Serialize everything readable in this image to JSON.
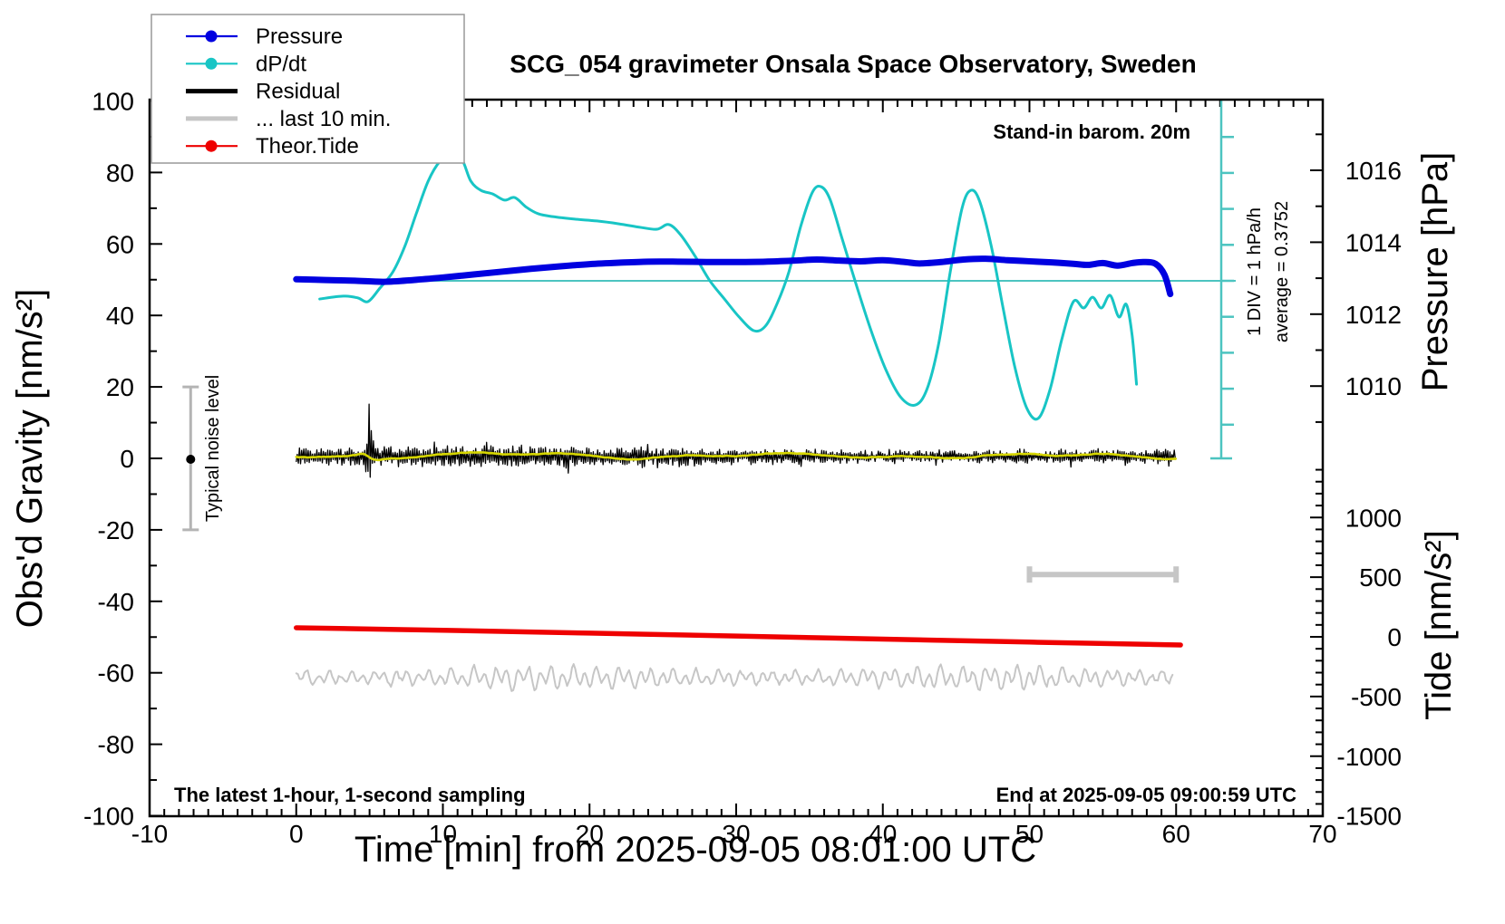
{
  "title": "SCG_054 gravimeter Onsala Space Observatory, Sweden",
  "annotations": {
    "barometer": "Stand-in barom. 20m",
    "div_scale": "1 DIV = 1 hPa/h",
    "average": "average = 0.3752",
    "noise_label": "Typical noise level",
    "sampling": "The latest 1-hour, 1-second sampling",
    "end_time": "End at 2025-09-05 09:00:59 UTC"
  },
  "axes": {
    "x": {
      "label": "Time [min] from 2025-09-05 08:01:00 UTC",
      "range": [
        -10,
        70
      ],
      "major_ticks": [
        -10,
        0,
        10,
        20,
        30,
        40,
        50,
        60,
        70
      ],
      "minor_step": 1
    },
    "y_left": {
      "label": "Obs'd Gravity [nm/s²]",
      "range": [
        -100,
        100
      ],
      "major_ticks": [
        100,
        80,
        60,
        40,
        20,
        0,
        -20,
        -40,
        -60,
        -80,
        -100
      ],
      "minor_step": 10
    },
    "y_right_pressure": {
      "label": "Pressure [hPa]",
      "major_ticks": [
        1016,
        1014,
        1012,
        1010
      ],
      "minor_ticks": [
        1017,
        1015,
        1013,
        1011,
        1009
      ]
    },
    "y_right_tide": {
      "label": "Tide [nm/s²]",
      "major_ticks": [
        1000,
        500,
        0,
        -500,
        -1000,
        -1500
      ],
      "minor_step": 100,
      "minor_range": [
        -1400,
        1400
      ]
    }
  },
  "legend": {
    "items": [
      {
        "label": "Pressure",
        "color": "#0000e0",
        "style": "line-dot"
      },
      {
        "label": "dP/dt",
        "color": "#18c5c5",
        "style": "line-dot"
      },
      {
        "label": "Residual",
        "color": "#000000",
        "style": "thick"
      },
      {
        "label": "... last 10 min.",
        "color": "#c6c6c6",
        "style": "thick"
      },
      {
        "label": "Theor.Tide",
        "color": "#ee0000",
        "style": "line-dot"
      }
    ]
  },
  "colors": {
    "pressure": "#0000e0",
    "dpdt": "#18c5c5",
    "dpdt_ruler": "#4cc4c0",
    "residual": "#000000",
    "residual_smooth": "#d6d600",
    "last10": "#c6c6c6",
    "tide": "#ee0000",
    "noise_bar": "#b4b4b4"
  },
  "chart_data": {
    "type": "line",
    "title": "SCG_054 gravimeter Onsala Space Observatory, Sweden",
    "xlabel": "Time [min] from 2025-09-05 08:01:00 UTC",
    "x_range_min": [
      -10,
      70
    ],
    "left_axis": {
      "label": "Obs'd Gravity [nm/s²]",
      "range": [
        -100,
        100
      ]
    },
    "pressure_axis": {
      "label": "Pressure [hPa]",
      "labeled_range": [
        1009,
        1017
      ]
    },
    "tide_axis": {
      "label": "Tide [nm/s²]",
      "range": [
        -1500,
        1000
      ]
    },
    "dpdt_scale_note": "1 DIV = 1 hPa/h, average = 0.3752 hPa/h",
    "series": [
      {
        "name": "Pressure",
        "unit": "hPa",
        "axis": "pressure",
        "points": [
          [
            0,
            1012.97
          ],
          [
            2,
            1012.95
          ],
          [
            4,
            1012.93
          ],
          [
            6,
            1012.9
          ],
          [
            8,
            1012.95
          ],
          [
            10,
            1013.02
          ],
          [
            12,
            1013.1
          ],
          [
            14,
            1013.18
          ],
          [
            16,
            1013.26
          ],
          [
            18,
            1013.33
          ],
          [
            20,
            1013.39
          ],
          [
            22,
            1013.43
          ],
          [
            24,
            1013.46
          ],
          [
            26,
            1013.46
          ],
          [
            28,
            1013.45
          ],
          [
            30,
            1013.45
          ],
          [
            32,
            1013.46
          ],
          [
            34,
            1013.49
          ],
          [
            35.5,
            1013.52
          ],
          [
            37,
            1013.49
          ],
          [
            38.5,
            1013.47
          ],
          [
            40,
            1013.5
          ],
          [
            41.5,
            1013.45
          ],
          [
            42.5,
            1013.41
          ],
          [
            44,
            1013.45
          ],
          [
            45.5,
            1013.52
          ],
          [
            47,
            1013.54
          ],
          [
            48.5,
            1013.5
          ],
          [
            50,
            1013.47
          ],
          [
            51.5,
            1013.44
          ],
          [
            53,
            1013.4
          ],
          [
            54,
            1013.37
          ],
          [
            55,
            1013.42
          ],
          [
            56,
            1013.35
          ],
          [
            57,
            1013.42
          ],
          [
            57.8,
            1013.45
          ],
          [
            58.6,
            1013.4
          ],
          [
            59.2,
            1013.1
          ],
          [
            59.6,
            1012.56
          ]
        ]
      },
      {
        "name": "dP/dt",
        "unit": "hPa/h",
        "axis": "dpdt",
        "average": 0.3752,
        "points": [
          [
            1.6,
            -0.13
          ],
          [
            3.2,
            -0.05
          ],
          [
            4.2,
            -0.1
          ],
          [
            4.9,
            -0.2
          ],
          [
            5.7,
            0.17
          ],
          [
            6.6,
            0.63
          ],
          [
            7.4,
            1.33
          ],
          [
            8.2,
            2.26
          ],
          [
            9.0,
            3.15
          ],
          [
            9.8,
            3.7
          ],
          [
            10.6,
            3.9
          ],
          [
            11.3,
            3.75
          ],
          [
            11.9,
            3.15
          ],
          [
            12.6,
            2.89
          ],
          [
            13.4,
            2.79
          ],
          [
            14.2,
            2.62
          ],
          [
            14.9,
            2.69
          ],
          [
            15.7,
            2.42
          ],
          [
            16.5,
            2.24
          ],
          [
            17.5,
            2.16
          ],
          [
            19,
            2.09
          ],
          [
            20.5,
            2.04
          ],
          [
            22,
            1.96
          ],
          [
            23.5,
            1.86
          ],
          [
            24.6,
            1.81
          ],
          [
            25.4,
            1.94
          ],
          [
            26.2,
            1.66
          ],
          [
            27.2,
            1.06
          ],
          [
            28.2,
            0.38
          ],
          [
            29.2,
            -0.13
          ],
          [
            30.2,
            -0.63
          ],
          [
            31.2,
            -1.01
          ],
          [
            32.0,
            -0.88
          ],
          [
            32.8,
            -0.25
          ],
          [
            33.6,
            0.63
          ],
          [
            34.4,
            1.89
          ],
          [
            35.2,
            2.84
          ],
          [
            35.8,
            2.99
          ],
          [
            36.4,
            2.64
          ],
          [
            37.2,
            1.58
          ],
          [
            38.2,
            0.25
          ],
          [
            39.2,
            -1.01
          ],
          [
            40.2,
            -2.09
          ],
          [
            41.2,
            -2.85
          ],
          [
            42.2,
            -3.08
          ],
          [
            43.0,
            -2.65
          ],
          [
            43.8,
            -1.39
          ],
          [
            44.6,
            0.63
          ],
          [
            45.4,
            2.39
          ],
          [
            46.0,
            2.89
          ],
          [
            46.6,
            2.59
          ],
          [
            47.4,
            1.33
          ],
          [
            48.2,
            -0.38
          ],
          [
            49.0,
            -2.02
          ],
          [
            49.8,
            -3.15
          ],
          [
            50.6,
            -3.45
          ],
          [
            51.4,
            -2.65
          ],
          [
            52.2,
            -1.26
          ],
          [
            53.0,
            -0.2
          ],
          [
            53.7,
            -0.38
          ],
          [
            54.3,
            -0.08
          ],
          [
            54.9,
            -0.38
          ],
          [
            55.5,
            -0.03
          ],
          [
            56.1,
            -0.63
          ],
          [
            56.6,
            -0.28
          ],
          [
            57.0,
            -1.14
          ],
          [
            57.3,
            -2.5
          ]
        ]
      },
      {
        "name": "Residual",
        "unit": "nm/s²",
        "axis": "gravity",
        "description": "1-second residual noise centered on 0 nm/s²",
        "center": 0,
        "typical_amplitude": 2.5,
        "spike": {
          "t": 5.0,
          "max": 21,
          "min": -8
        },
        "t_range": [
          0,
          60
        ]
      },
      {
        "name": "Residual smoothed",
        "unit": "nm/s²",
        "axis": "gravity",
        "description": "yellow smoothed residual, ~0 nm/s² with ±1 nm/s² wobble",
        "center": 0,
        "t_range": [
          0,
          60
        ]
      },
      {
        "name": "... last 10 min.",
        "unit": "nm/s²",
        "axis": "tide",
        "description": "magnified last-10-minute residual trace",
        "center": -356,
        "typical_amplitude": 85,
        "t_range": [
          0,
          59.8
        ]
      },
      {
        "name": "Theor.Tide",
        "unit": "nm/s²",
        "axis": "tide",
        "points": [
          [
            0,
            76
          ],
          [
            10,
            55
          ],
          [
            20,
            31
          ],
          [
            30,
            7
          ],
          [
            40,
            -19
          ],
          [
            50,
            -44
          ],
          [
            60.3,
            -68
          ]
        ]
      }
    ],
    "noise_bar": {
      "t": -7.2,
      "center": 0,
      "half_range": 20,
      "label": "Typical noise level"
    },
    "last10_span_bar": {
      "t_start": 50,
      "t_end": 60,
      "gravity_level": -32.5
    }
  }
}
